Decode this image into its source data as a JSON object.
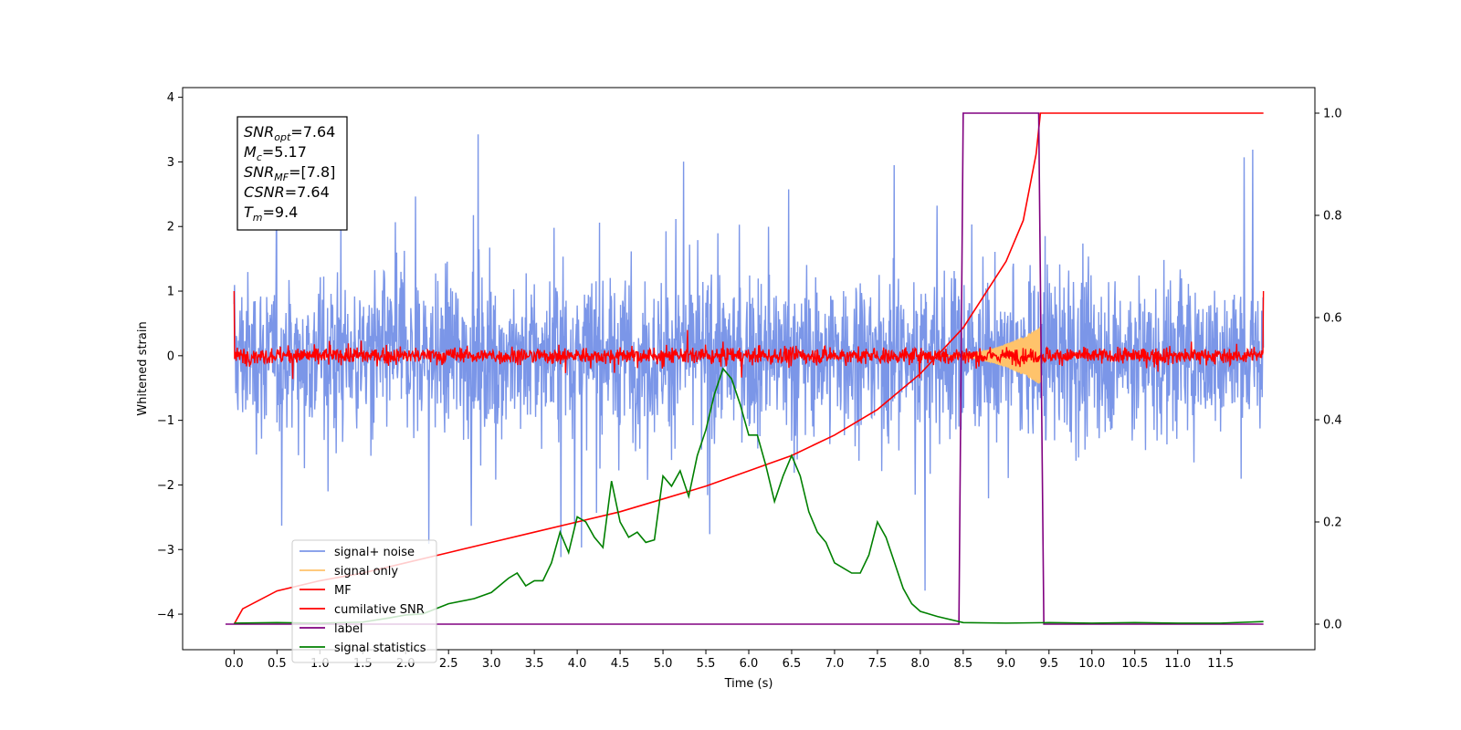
{
  "chart_data": {
    "type": "line",
    "xlabel": "Time (s)",
    "ylabel": "Whitened strain",
    "xlim": [
      -0.6,
      12.6
    ],
    "ylim": [
      -4.55,
      4.15
    ],
    "y2lim": [
      -0.05,
      1.05
    ],
    "xticks": [
      "0.0",
      "0.5",
      "1.0",
      "1.5",
      "2.0",
      "2.5",
      "3.0",
      "3.5",
      "4.0",
      "4.5",
      "5.0",
      "5.5",
      "6.0",
      "6.5",
      "7.0",
      "7.5",
      "8.0",
      "8.5",
      "9.0",
      "9.5",
      "10.0",
      "10.5",
      "11.0",
      "11.5"
    ],
    "yticks": [
      "4",
      "3",
      "2",
      "1",
      "0",
      "−1",
      "−2",
      "−3",
      "−4"
    ],
    "y2ticks": [
      "1.0",
      "0.8",
      "0.6",
      "0.4",
      "0.2",
      "0.0"
    ],
    "legend": {
      "placement": "lower-left",
      "entries": [
        {
          "label": "signal+ noise",
          "color": "#7b96e8"
        },
        {
          "label": "signal only",
          "color": "#ffc36b"
        },
        {
          "label": "MF",
          "color": "#ff0000"
        },
        {
          "label": "cumilative SNR",
          "color": "#ff0000"
        },
        {
          "label": "label",
          "color": "#800080"
        },
        {
          "label": "signal statistics",
          "color": "#008000"
        }
      ]
    },
    "info_box": {
      "lines": [
        {
          "base": "SNR",
          "sub": "opt",
          "value": "=7.64"
        },
        {
          "base": "M",
          "sub": "c",
          "value": "=5.17"
        },
        {
          "base": "SNR",
          "sub": "MF",
          "value": "=[7.8]"
        },
        {
          "base": "CSNR",
          "sub": "",
          "value": "=7.64"
        },
        {
          "base": "T",
          "sub": "m",
          "value": "=9.4"
        }
      ]
    },
    "series": [
      {
        "name": "signal+ noise",
        "color": "#7b96e8",
        "axis": "left",
        "t_range": [
          0,
          12
        ],
        "band_upper": 1.0,
        "band_lower": -1.0,
        "typical_peak": 2.6,
        "max": 3.75,
        "min": -4.15
      },
      {
        "name": "signal only",
        "color": "#ffc36b",
        "axis": "left",
        "t_start": 8.2,
        "t_merger": 9.4,
        "peak_amplitude": 0.45
      },
      {
        "name": "MF",
        "color": "#ff0000",
        "axis": "left",
        "t_range": [
          0,
          12
        ],
        "band": 0.15,
        "edge_value": 1.0
      },
      {
        "name": "cumilative SNR",
        "color": "#ff0000",
        "axis": "right",
        "points": [
          [
            0,
            0.0
          ],
          [
            0.1,
            0.03
          ],
          [
            0.5,
            0.065
          ],
          [
            1.0,
            0.085
          ],
          [
            1.5,
            0.1
          ],
          [
            2.0,
            0.12
          ],
          [
            2.5,
            0.14
          ],
          [
            3.0,
            0.16
          ],
          [
            3.5,
            0.18
          ],
          [
            4.0,
            0.2
          ],
          [
            4.5,
            0.22
          ],
          [
            5.0,
            0.245
          ],
          [
            5.5,
            0.27
          ],
          [
            6.0,
            0.3
          ],
          [
            6.5,
            0.33
          ],
          [
            7.0,
            0.37
          ],
          [
            7.5,
            0.42
          ],
          [
            8.0,
            0.49
          ],
          [
            8.5,
            0.58
          ],
          [
            9.0,
            0.71
          ],
          [
            9.2,
            0.79
          ],
          [
            9.35,
            0.92
          ],
          [
            9.4,
            1.0
          ],
          [
            12.0,
            1.0
          ]
        ]
      },
      {
        "name": "label",
        "color": "#800080",
        "axis": "right",
        "points": [
          [
            -0.1,
            0.0
          ],
          [
            8.45,
            0.0
          ],
          [
            8.5,
            1.0
          ],
          [
            9.38,
            1.0
          ],
          [
            9.44,
            0.0
          ],
          [
            12.0,
            0.0
          ]
        ]
      },
      {
        "name": "signal statistics",
        "color": "#008000",
        "axis": "right",
        "points": [
          [
            0,
            0.002
          ],
          [
            0.5,
            0.003
          ],
          [
            1.0,
            0.002
          ],
          [
            1.5,
            0.004
          ],
          [
            1.8,
            0.012
          ],
          [
            2.0,
            0.018
          ],
          [
            2.2,
            0.02
          ],
          [
            2.5,
            0.04
          ],
          [
            2.8,
            0.05
          ],
          [
            3.0,
            0.062
          ],
          [
            3.2,
            0.09
          ],
          [
            3.3,
            0.1
          ],
          [
            3.4,
            0.075
          ],
          [
            3.5,
            0.085
          ],
          [
            3.6,
            0.085
          ],
          [
            3.7,
            0.12
          ],
          [
            3.8,
            0.18
          ],
          [
            3.9,
            0.14
          ],
          [
            4.0,
            0.21
          ],
          [
            4.1,
            0.2
          ],
          [
            4.2,
            0.17
          ],
          [
            4.3,
            0.15
          ],
          [
            4.4,
            0.28
          ],
          [
            4.5,
            0.2
          ],
          [
            4.6,
            0.17
          ],
          [
            4.7,
            0.18
          ],
          [
            4.8,
            0.16
          ],
          [
            4.9,
            0.165
          ],
          [
            5.0,
            0.29
          ],
          [
            5.1,
            0.27
          ],
          [
            5.2,
            0.3
          ],
          [
            5.3,
            0.25
          ],
          [
            5.4,
            0.33
          ],
          [
            5.5,
            0.38
          ],
          [
            5.6,
            0.45
          ],
          [
            5.7,
            0.5
          ],
          [
            5.8,
            0.48
          ],
          [
            5.9,
            0.43
          ],
          [
            6.0,
            0.37
          ],
          [
            6.1,
            0.37
          ],
          [
            6.2,
            0.31
          ],
          [
            6.3,
            0.24
          ],
          [
            6.4,
            0.29
          ],
          [
            6.5,
            0.33
          ],
          [
            6.6,
            0.29
          ],
          [
            6.7,
            0.22
          ],
          [
            6.8,
            0.18
          ],
          [
            6.9,
            0.16
          ],
          [
            7.0,
            0.12
          ],
          [
            7.1,
            0.11
          ],
          [
            7.2,
            0.1
          ],
          [
            7.3,
            0.1
          ],
          [
            7.4,
            0.135
          ],
          [
            7.5,
            0.2
          ],
          [
            7.6,
            0.17
          ],
          [
            7.7,
            0.12
          ],
          [
            7.8,
            0.07
          ],
          [
            7.9,
            0.04
          ],
          [
            8.0,
            0.025
          ],
          [
            8.2,
            0.015
          ],
          [
            8.5,
            0.003
          ],
          [
            9.0,
            0.002
          ],
          [
            9.5,
            0.003
          ],
          [
            10.0,
            0.002
          ],
          [
            10.5,
            0.003
          ],
          [
            11.0,
            0.002
          ],
          [
            11.5,
            0.002
          ],
          [
            12.0,
            0.005
          ]
        ]
      }
    ]
  }
}
